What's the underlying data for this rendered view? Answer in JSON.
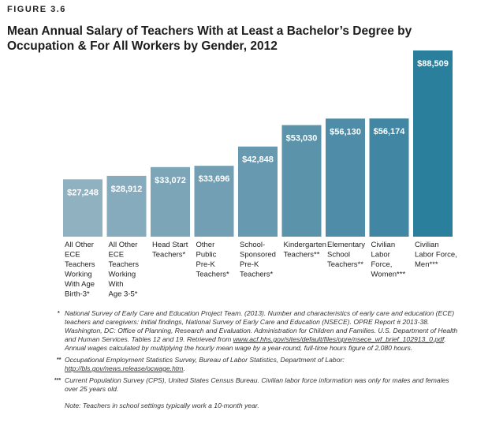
{
  "figure_label": "FIGURE 3.6",
  "chart_data": {
    "type": "bar",
    "title": "Mean Annual Salary of Teachers With at Least a Bachelor’s Degree by Occupation & For All Workers by Gender, 2012",
    "xlabel": "",
    "ylabel": "",
    "ylim": [
      0,
      90000
    ],
    "grid": false,
    "legend": "none",
    "categories": [
      [
        "All Other",
        "ECE",
        "Teachers",
        "Working",
        "With Age",
        "Birth-3*"
      ],
      [
        "All Other",
        "ECE",
        "Teachers",
        "Working",
        "With",
        "Age 3-5*"
      ],
      [
        "Head Start",
        "Teachers*"
      ],
      [
        "Other",
        "Public",
        "Pre-K",
        "Teachers*"
      ],
      [
        "School-",
        "Sponsored",
        "Pre-K",
        "Teachers*"
      ],
      [
        "Kindergarten",
        "Teachers**"
      ],
      [
        "Elementary",
        "School",
        "Teachers**"
      ],
      [
        "Civilian",
        "Labor",
        "Force,",
        "Women***"
      ],
      [
        "Civilian",
        "Labor Force,",
        "Men***"
      ]
    ],
    "values": [
      27248,
      28912,
      33072,
      33696,
      42848,
      53030,
      56130,
      56174,
      88509
    ],
    "value_labels": [
      "$27,248",
      "$28,912",
      "$33,072",
      "$33,696",
      "$42,848",
      "$53,030",
      "$56,130",
      "$56,174",
      "$88,509"
    ],
    "colors": [
      "#8fb1c0",
      "#86abbc",
      "#7ca5b8",
      "#729fb4",
      "#6799b0",
      "#5b93ab",
      "#4e8ca7",
      "#4186a3",
      "#2a7f9c"
    ]
  },
  "notes": [
    {
      "mark": "*",
      "parts": [
        {
          "t": "National Survey of Early Care and Education Project Team. (2013). Number and characteristics of early care and education (ECE) teachers and caregivers: Initial findings, National Survey of Early Care and Education (NSECE). OPRE Report # 2013-38. Washington, DC: Office of Planning, Research and Evaluation. Administration for Children and Families. U.S. Department of Health and Human Services. Tables 12 and 19. Retrieved from "
        },
        {
          "t": "www.acf.hhs.gov/sites/default/files/opre/nsece_wf_brief_102913_0.pdf",
          "link": true
        },
        {
          "t": ". Annual wages calculated by multiplying the hourly mean wage by a year-round, full-time hours figure of 2,080 hours."
        }
      ]
    },
    {
      "mark": "**",
      "parts": [
        {
          "t": "Occupational Employment Statistics Survey, Bureau of Labor Statistics, Department of Labor: "
        },
        {
          "t": "http://bls.gov/news.release/ocwage.htm",
          "link": true
        },
        {
          "t": "."
        }
      ]
    },
    {
      "mark": "***",
      "parts": [
        {
          "t": "Current Population Survey (CPS), United States Census Bureau. Civilian labor force information was only for males and females over 25 years old."
        }
      ]
    }
  ],
  "final_note": "Note: Teachers in school settings typically work a 10-month year."
}
